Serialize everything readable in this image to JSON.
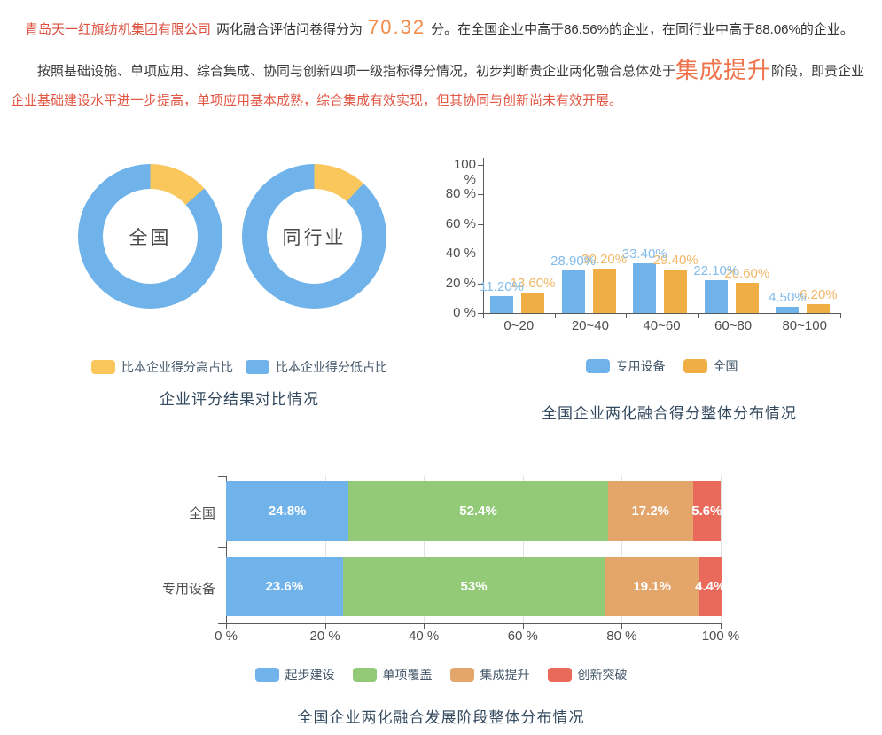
{
  "header": {
    "company": "青岛天一红旗纺机集团有限公司",
    "score_prefix": "两化融合评估问卷得分为",
    "score": "70.32",
    "score_suffix": "分。在全国企业中高于86.56%的企业，在同行业中高于88.06%的企业。",
    "assessment_lead": "按照基础设施、单项应用、综合集成、协同与创新四项一级指标得分情况，初步判断贵企业两化融合总体处于",
    "stage": "集成提升",
    "assessment_mid": "阶段，即贵企业",
    "assessment_detail": "企业基础建设水平进一步提高，单项应用基本成熟，综合集成有效实现，但其协同与创新尚未有效开展。"
  },
  "colors": {
    "company_name": "#DD4F3E",
    "score": "#F28B4B",
    "stage": "#F0734B",
    "detail_red": "#E25845",
    "body_text": "#333333",
    "title_text": "#33495F",
    "axis_text": "#4D4D4D",
    "blue": "#6FB3EA",
    "yellow": "#FAC75C",
    "bar_orange": "#EFAF45",
    "green": "#92CA78",
    "stack_orange": "#E3A56A",
    "red": "#E9695B"
  },
  "chart_data": [
    {
      "type": "pie",
      "variant": "donut-pair",
      "title": "企业评分结果对比情况",
      "donuts": [
        {
          "label": "全国",
          "slices": [
            {
              "name": "比本企业得分高占比",
              "value": 13.44
            },
            {
              "name": "比本企业得分低占比",
              "value": 86.56
            }
          ]
        },
        {
          "label": "同行业",
          "slices": [
            {
              "name": "比本企业得分高占比",
              "value": 11.94
            },
            {
              "name": "比本企业得分低占比",
              "value": 88.06
            }
          ]
        }
      ],
      "legend": [
        {
          "label": "比本企业得分高占比",
          "color": "#FAC75C"
        },
        {
          "label": "比本企业得分低占比",
          "color": "#6FB3EA"
        }
      ],
      "legend_position": "bottom"
    },
    {
      "type": "bar",
      "title": "全国企业两化融合得分整体分布情况",
      "categories": [
        "0~20",
        "20~40",
        "40~60",
        "60~80",
        "80~100"
      ],
      "series": [
        {
          "name": "专用设备",
          "color": "#6FB3EA",
          "label_color": "#85BCE9",
          "values": [
            11.2,
            28.9,
            33.4,
            22.1,
            4.5
          ],
          "labels": [
            "11.20%",
            "28.90%",
            "33.40%",
            "22.10%",
            "4.50%"
          ]
        },
        {
          "name": "全国",
          "color": "#EFAF45",
          "label_color": "#F2B768",
          "values": [
            13.6,
            30.2,
            29.4,
            20.6,
            6.2
          ],
          "labels": [
            "13.60%",
            "30.20%",
            "29.40%",
            "20.60%",
            "6.20%"
          ]
        }
      ],
      "yticks": [
        "0 %",
        "20 %",
        "40 %",
        "60 %",
        "80 %",
        "100 %"
      ],
      "ylim": [
        0,
        100
      ],
      "grid": false,
      "legend_position": "bottom"
    },
    {
      "type": "bar",
      "variant": "stacked-horizontal",
      "title": "全国企业两化融合发展阶段整体分布情况",
      "categories": [
        "全国",
        "专用设备"
      ],
      "series": [
        {
          "name": "起步建设",
          "color": "#6FB3EA",
          "values": [
            24.8,
            23.6
          ]
        },
        {
          "name": "单项覆盖",
          "color": "#92CA78",
          "values": [
            52.4,
            53
          ]
        },
        {
          "name": "集成提升",
          "color": "#E3A56A",
          "values": [
            17.2,
            19.1
          ]
        },
        {
          "name": "创新突破",
          "color": "#E9695B",
          "values": [
            5.6,
            4.4
          ]
        }
      ],
      "bar_labels": [
        [
          "24.8%",
          "52.4%",
          "17.2%",
          "5.6%"
        ],
        [
          "23.6%",
          "53%",
          "19.1%",
          "4.4%"
        ]
      ],
      "xticks": [
        "0 %",
        "20 %",
        "40 %",
        "60 %",
        "80 %",
        "100 %"
      ],
      "xlim": [
        0,
        100
      ],
      "grid": true,
      "legend_position": "bottom"
    }
  ]
}
